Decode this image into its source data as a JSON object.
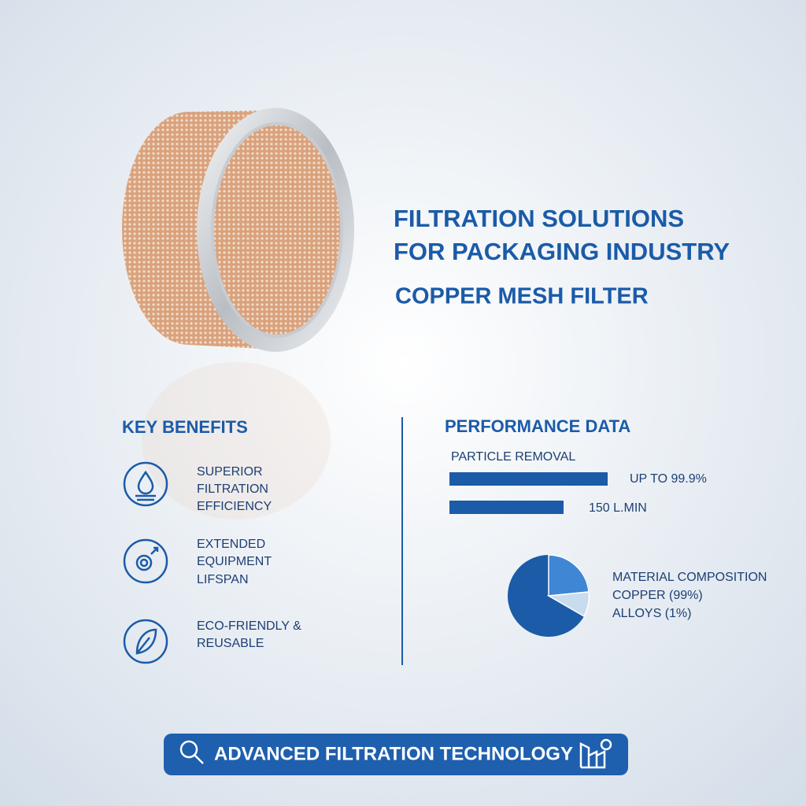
{
  "header": {
    "title_lines": [
      "FILTRATION SOLUTIONS",
      "FOR PACKAGING INDUSTRY"
    ],
    "subtitle": "COPPER MESH FILTER"
  },
  "key_benefits": {
    "title": "KEY BENEFITS",
    "items": [
      {
        "lines": [
          "SUPERIOR",
          "FILTRATION",
          "EFFICIENCY"
        ]
      },
      {
        "lines": [
          "EXTENDED",
          "EQUIPMENT",
          "LIFSPAN"
        ]
      },
      {
        "lines": [
          "ECO-FRIENDLY &",
          "REUSABLE"
        ]
      }
    ]
  },
  "performance": {
    "title": "PERFORMANCE DATA",
    "metric_label": "PARTICLE REMOVAL",
    "metrics": [
      "UP TO 99.9%",
      "150 L.MIN"
    ],
    "composition": {
      "title": "MATERIAL COMPOSITION",
      "items": [
        "COPPER (99%)",
        "ALLOYS (1%)"
      ]
    }
  },
  "banner": {
    "text": "ADVANCED FILTRATION TECHNOLOGY"
  }
}
